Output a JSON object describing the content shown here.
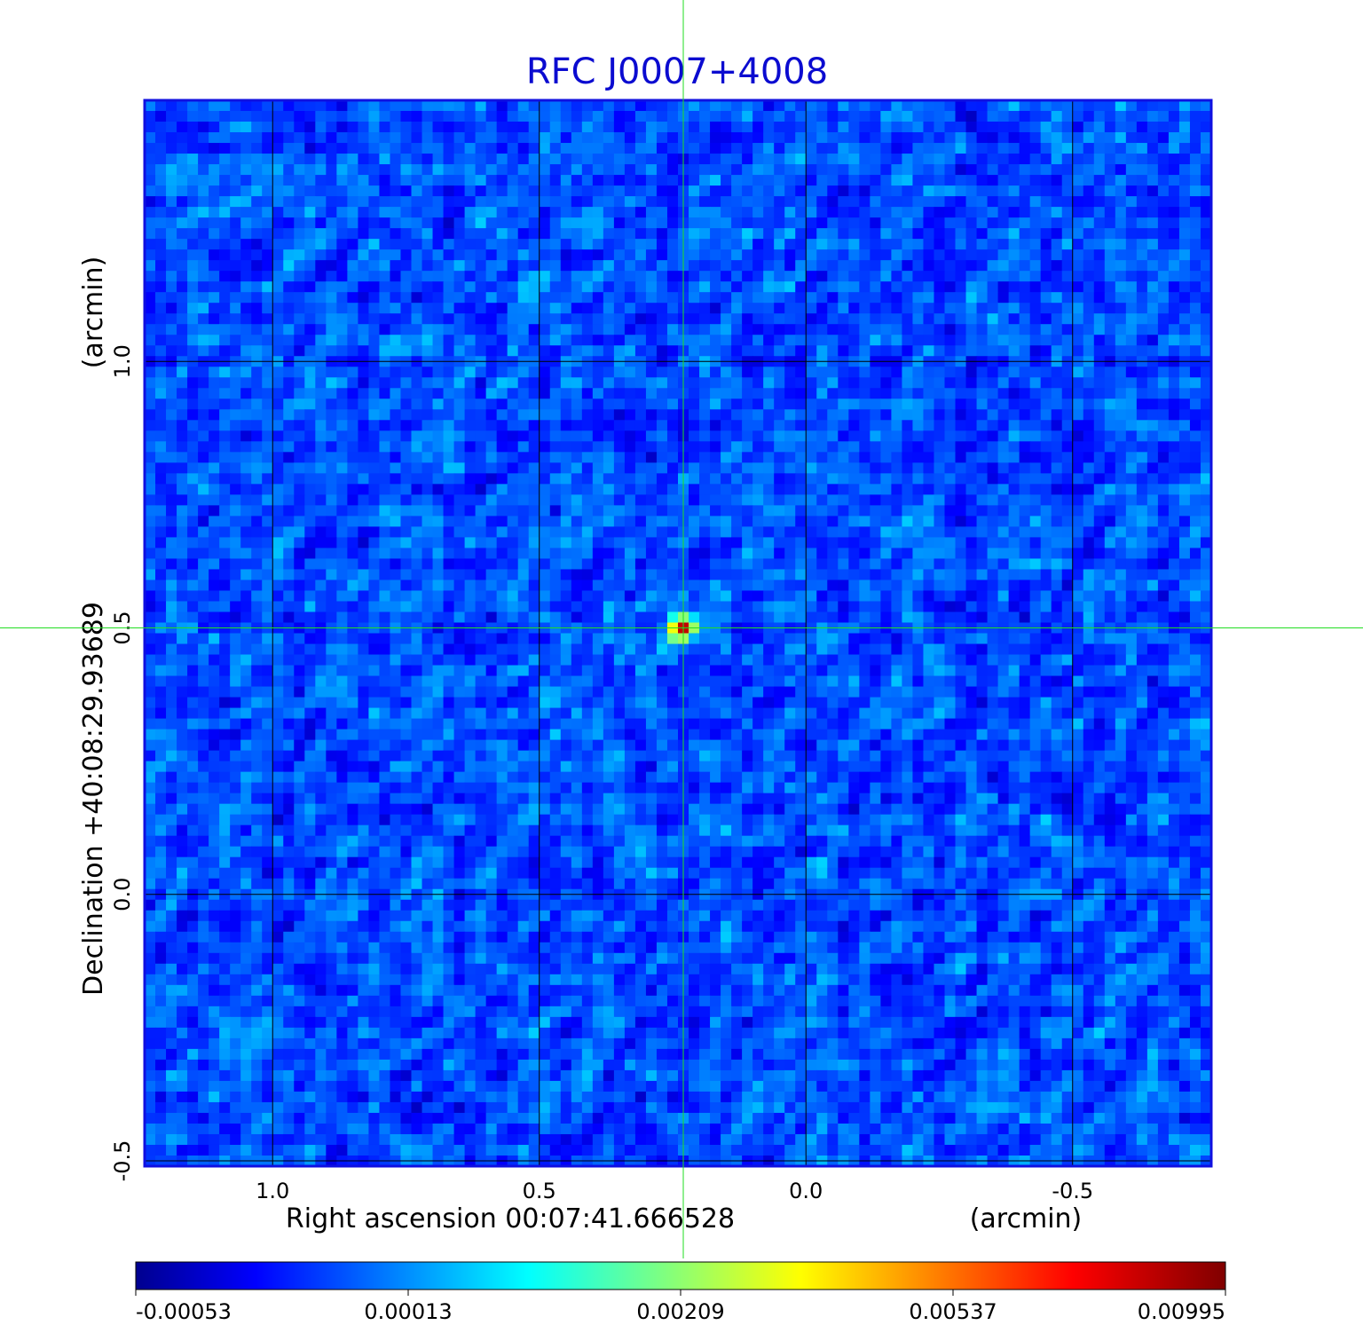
{
  "chart_data": {
    "type": "heatmap",
    "title": "RFC J0007+4008",
    "colors": {
      "title": "#0b0bd0",
      "frame": "#1010e0",
      "grid": "#000000",
      "crosshair": "#22dd22"
    },
    "colormap": "jet",
    "x_axis": {
      "label": "Right ascension  00:07:41.666528",
      "unit_label": "(arcmin)",
      "ticks": [
        {
          "value": 1.0,
          "label": "1.0"
        },
        {
          "value": 0.5,
          "label": "0.5"
        },
        {
          "value": 0.0,
          "label": "0.0"
        },
        {
          "value": -0.5,
          "label": "-0.5"
        }
      ],
      "range": [
        1.24,
        -0.76
      ],
      "reversed": true
    },
    "y_axis": {
      "label": "Declination  +40:08:29.93689",
      "unit_label": "(arcmin)",
      "ticks": [
        {
          "value": 1.0,
          "label": "1.0"
        },
        {
          "value": 0.5,
          "label": "0.5"
        },
        {
          "value": 0.0,
          "label": "0.0"
        },
        {
          "value": -0.5,
          "label": "-0.5"
        }
      ],
      "range": [
        -0.51,
        1.49
      ]
    },
    "grid": true,
    "source_peak": {
      "x": 0.23,
      "y": 0.5
    },
    "colorbar": {
      "position": "bottom",
      "ticks": [
        "-0.00053",
        "0.00013",
        "0.00209",
        "0.00537",
        "0.00995"
      ]
    }
  }
}
